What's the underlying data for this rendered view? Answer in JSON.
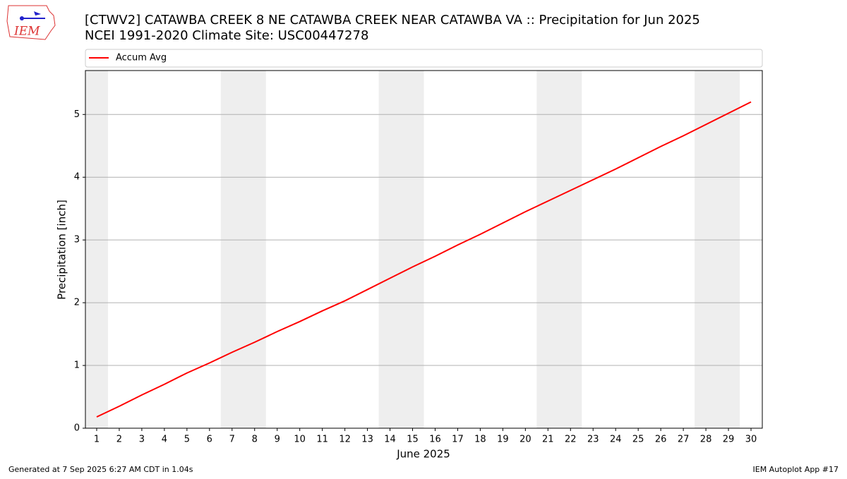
{
  "logo_text": "IEM",
  "chart_data": {
    "type": "line",
    "title": "[CTWV2] CATAWBA CREEK 8 NE CATAWBA CREEK NEAR CATAWBA  VA :: Precipitation for Jun 2025",
    "subtitle": "NCEI 1991-2020 Climate Site: USC00447278",
    "xlabel": "June 2025",
    "ylabel": "Precipitation [inch]",
    "x": [
      1,
      2,
      3,
      4,
      5,
      6,
      7,
      8,
      9,
      10,
      11,
      12,
      13,
      14,
      15,
      16,
      17,
      18,
      19,
      20,
      21,
      22,
      23,
      24,
      25,
      26,
      27,
      28,
      29,
      30
    ],
    "series": [
      {
        "name": "Accum Avg",
        "color": "#ff0000",
        "values": [
          0.18,
          0.35,
          0.53,
          0.7,
          0.88,
          1.04,
          1.21,
          1.37,
          1.54,
          1.7,
          1.87,
          2.03,
          2.21,
          2.39,
          2.57,
          2.74,
          2.92,
          3.09,
          3.27,
          3.45,
          3.62,
          3.79,
          3.96,
          4.13,
          4.31,
          4.49,
          4.66,
          4.84,
          5.02,
          5.2
        ]
      }
    ],
    "xlim": [
      0.5,
      30.5
    ],
    "ylim": [
      0,
      5.7
    ],
    "xticks": [
      1,
      2,
      3,
      4,
      5,
      6,
      7,
      8,
      9,
      10,
      11,
      12,
      13,
      14,
      15,
      16,
      17,
      18,
      19,
      20,
      21,
      22,
      23,
      24,
      25,
      26,
      27,
      28,
      29,
      30
    ],
    "yticks": [
      0,
      1,
      2,
      3,
      4,
      5
    ],
    "grid": "y",
    "legend": "top",
    "weekend_bands": [
      [
        0.5,
        1.5
      ],
      [
        6.5,
        8.5
      ],
      [
        13.5,
        15.5
      ],
      [
        20.5,
        22.5
      ],
      [
        27.5,
        29.5
      ]
    ],
    "band_color": "#eeeeee"
  },
  "footer": {
    "left": "Generated at 7 Sep 2025 6:27 AM CDT in 1.04s",
    "right": "IEM Autoplot App #17"
  }
}
